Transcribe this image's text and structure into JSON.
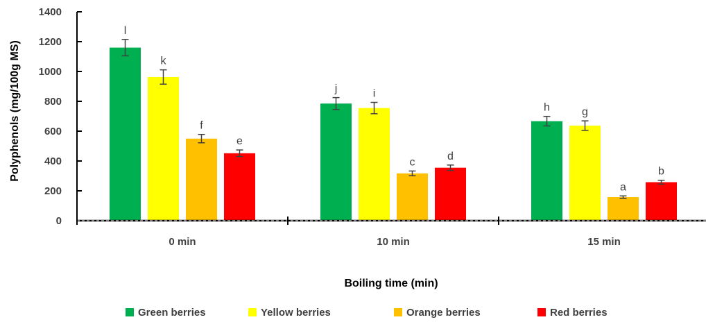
{
  "chart_data": {
    "type": "bar",
    "title": "",
    "xlabel": "Boiling time (min)",
    "ylabel": "Polyphenols (mg/100g MS)",
    "categories": [
      "0 min",
      "10 min",
      "15 min"
    ],
    "ylim": [
      0,
      1400
    ],
    "yticks": [
      0,
      200,
      400,
      600,
      800,
      1000,
      1200,
      1400
    ],
    "grid": false,
    "legend_position": "bottom",
    "error_bars": true,
    "series": [
      {
        "name": "Green berries",
        "color": "#00b050",
        "values": [
          1160,
          785,
          667
        ],
        "errors": [
          55,
          40,
          32
        ],
        "labels": [
          "l",
          "j",
          "h"
        ]
      },
      {
        "name": "Yellow berries",
        "color": "#ffff00",
        "values": [
          963,
          755,
          637
        ],
        "errors": [
          48,
          38,
          32
        ],
        "labels": [
          "k",
          "i",
          "g"
        ]
      },
      {
        "name": "Orange berries",
        "color": "#ffc000",
        "values": [
          550,
          317,
          158
        ],
        "errors": [
          28,
          16,
          8
        ],
        "labels": [
          "f",
          "c",
          "a"
        ]
      },
      {
        "name": "Red berries",
        "color": "#ff0000",
        "values": [
          452,
          355,
          258
        ],
        "errors": [
          22,
          18,
          13
        ],
        "labels": [
          "e",
          "d",
          "b"
        ]
      }
    ]
  }
}
